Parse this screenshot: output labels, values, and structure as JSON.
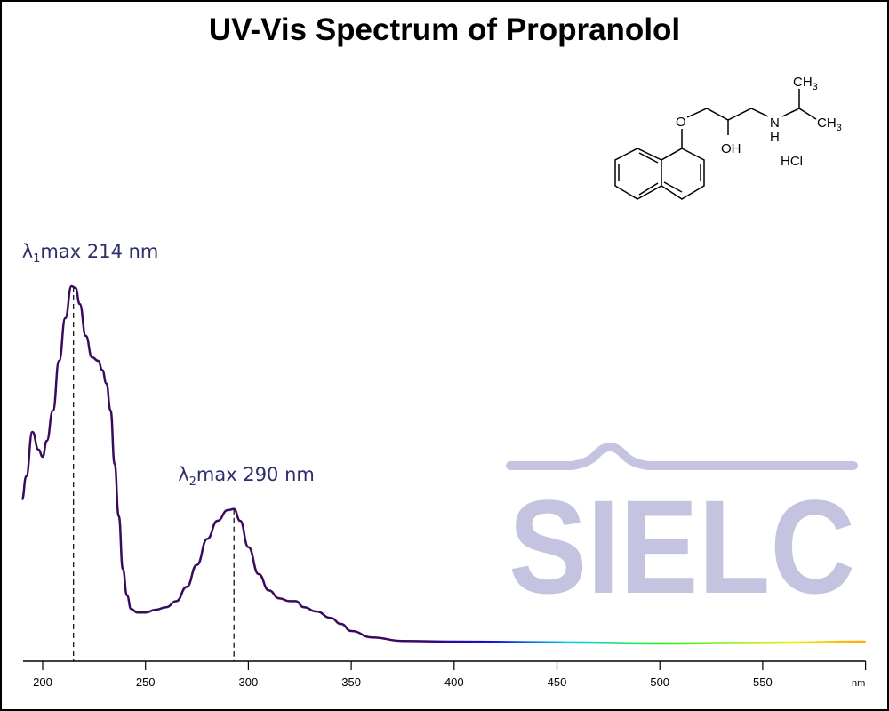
{
  "chart_data": {
    "type": "line",
    "title": "UV-Vis Spectrum of Propranolol",
    "xlabel": "nm",
    "ylabel": "",
    "xlim": [
      190,
      600
    ],
    "ylim": [
      0,
      1.05
    ],
    "xticks": [
      200,
      250,
      300,
      350,
      400,
      450,
      500,
      550
    ],
    "grid": false,
    "series": [
      {
        "name": "Propranolol",
        "x": [
          190,
          192,
          195,
          198,
          200,
          202,
          205,
          208,
          211,
          214,
          216,
          218,
          221,
          224,
          227,
          229,
          231,
          233,
          235,
          237,
          239,
          241,
          243,
          246,
          250,
          255,
          260,
          265,
          270,
          275,
          280,
          285,
          290,
          293,
          296,
          300,
          305,
          310,
          315,
          320,
          323,
          327,
          333,
          340,
          345,
          350,
          360,
          375,
          400,
          450,
          500,
          550,
          600
        ],
        "y": [
          0.4,
          0.465,
          0.59,
          0.54,
          0.52,
          0.565,
          0.65,
          0.79,
          0.91,
          1.0,
          0.995,
          0.95,
          0.86,
          0.8,
          0.79,
          0.764,
          0.726,
          0.65,
          0.5,
          0.353,
          0.204,
          0.13,
          0.092,
          0.082,
          0.082,
          0.09,
          0.097,
          0.114,
          0.154,
          0.216,
          0.289,
          0.34,
          0.37,
          0.373,
          0.34,
          0.266,
          0.19,
          0.144,
          0.122,
          0.114,
          0.114,
          0.097,
          0.085,
          0.067,
          0.05,
          0.03,
          0.012,
          0.002,
          0.0,
          -0.002,
          -0.005,
          -0.003,
          0.0
        ]
      }
    ],
    "annotations": [
      {
        "sub": "1",
        "text_pre": "λ",
        "text_post": "max  214 nm",
        "x": 215,
        "y": 1.0
      },
      {
        "sub": "2",
        "text_pre": "λ",
        "text_post": "max  290 nm",
        "x": 293,
        "y": 0.373
      }
    ],
    "gradient_colors": [
      "#3a0a5e",
      "#3a0a6a",
      "#1010ee",
      "#00ccee",
      "#22ee22",
      "#eeee00",
      "#ffaa00"
    ]
  },
  "structure": {
    "O": "O",
    "OH": "OH",
    "N": "N",
    "H": "H",
    "CH3a": "CH",
    "CH3b": "CH",
    "sub3": "3",
    "salt": "HCl"
  },
  "watermark": {
    "text": "SIELC",
    "color": "#c4c4e0"
  }
}
